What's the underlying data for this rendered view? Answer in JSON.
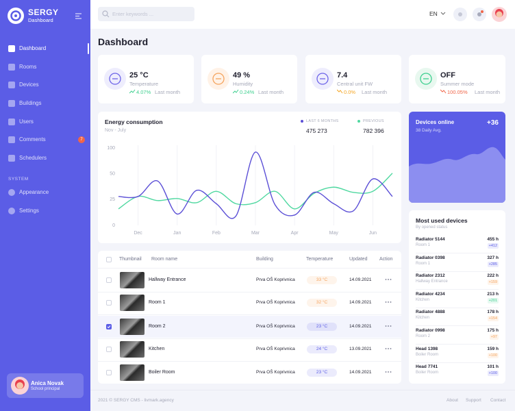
{
  "brand": {
    "name": "SERGY",
    "subtitle": "Dashboard"
  },
  "search_placeholder": "Enter keywords ...",
  "language": "EN",
  "nav": [
    {
      "label": "Dashboard"
    },
    {
      "label": "Rooms"
    },
    {
      "label": "Devices"
    },
    {
      "label": "Buildings"
    },
    {
      "label": "Users"
    },
    {
      "label": "Comments",
      "badge": 7
    },
    {
      "label": "Schedulers"
    }
  ],
  "system_label": "SYSTEM",
  "system_nav": [
    {
      "label": "Appearance"
    },
    {
      "label": "Settings"
    }
  ],
  "user": {
    "name": "Anica Novak",
    "role": "School principal"
  },
  "page_title": "Dashboard",
  "stats": [
    {
      "value": "25 °C",
      "label": "Temperature",
      "change": "4.07%",
      "period": "Last month",
      "color": "#3ccf8e",
      "icon_color": "#6c63e8",
      "icon_bg": "#eeedfd"
    },
    {
      "value": "49 %",
      "label": "Humidity",
      "change": "0.24%",
      "period": "Last month",
      "color": "#3ccf8e",
      "icon_color": "#f5a35c",
      "icon_bg": "#fff2e7"
    },
    {
      "value": "7.4",
      "label": "Central unit FW",
      "change": "0.0%",
      "period": "Last month",
      "color": "#f5a623",
      "icon_color": "#6c63e8",
      "icon_bg": "#eeedfd"
    },
    {
      "value": "OFF",
      "label": "Summer mode",
      "change": "100.05%",
      "period": "Last month",
      "color": "#f06548",
      "icon_color": "#3ccf8e",
      "icon_bg": "#e8f8ef"
    }
  ],
  "chart_data": {
    "type": "line",
    "title": "Energy consumption",
    "subtitle": "Nov - July",
    "categories": [
      null,
      "Dec",
      null,
      "Jan",
      null,
      "Feb",
      null,
      "Mar",
      null,
      "Apr",
      null,
      "May",
      null,
      "Jun",
      null
    ],
    "series": [
      {
        "name": "LAST 6 MONTHS",
        "total": "475 273",
        "color": "#5b4fd6",
        "values": [
          28,
          28,
          43,
          11,
          34,
          21,
          9,
          92,
          20,
          10,
          32,
          21,
          14,
          45,
          28
        ]
      },
      {
        "name": "PREVIOUS",
        "total": "782 396",
        "color": "#4fd8a0",
        "values": [
          16,
          28,
          24,
          26,
          22,
          33,
          21,
          22,
          33,
          16,
          31,
          37,
          32,
          33,
          51
        ]
      }
    ],
    "ylim": [
      0,
      100
    ],
    "yticks": [
      0,
      25,
      50,
      100
    ],
    "grid": true
  },
  "devices_online": {
    "title": "Devices online",
    "change": "+36",
    "subtitle": "38 Daily Avg."
  },
  "most_used": {
    "title": "Most used devices",
    "subtitle": "By opened status",
    "items": [
      {
        "name": "Radiator 5144",
        "location": "Room 1",
        "hours": "455 h",
        "delta": "+412",
        "color": "#5b5de6"
      },
      {
        "name": "Radiator 0398",
        "location": "Room 1",
        "hours": "327 h",
        "delta": "+285",
        "color": "#5b5de6"
      },
      {
        "name": "Radiator 2312",
        "location": "Hallway Entrance",
        "hours": "222 h",
        "delta": "+159",
        "color": "#f5a35c"
      },
      {
        "name": "Radiator 4234",
        "location": "Kitchen",
        "hours": "213 h",
        "delta": "+201",
        "color": "#3ccf8e"
      },
      {
        "name": "Radiator 4888",
        "location": "Kitchen",
        "hours": "178 h",
        "delta": "+154",
        "color": "#f5a35c"
      },
      {
        "name": "Radiator 0998",
        "location": "Room 2",
        "hours": "175 h",
        "delta": "+97",
        "color": "#f5a35c"
      },
      {
        "name": "Head 1398",
        "location": "Boiler Room",
        "hours": "159 h",
        "delta": "+100",
        "color": "#f5a35c"
      },
      {
        "name": "Head 7741",
        "location": "Boiler Room",
        "hours": "101 h",
        "delta": "+100",
        "color": "#5b5de6"
      }
    ]
  },
  "table": {
    "headers": [
      "Thumbnail",
      "Room name",
      "Building",
      "Temperature",
      "Updated",
      "Action"
    ],
    "rows": [
      {
        "room": "Hallway Entrance",
        "building": "Prva OŠ Koprivnica",
        "temperature": "33 °C",
        "updated": "14.09.2021",
        "color": "#f5a35c",
        "selected": false
      },
      {
        "room": "Room 1",
        "building": "Prva OŠ Koprivnica",
        "temperature": "32 °C",
        "updated": "14.09.2021",
        "color": "#f5a35c",
        "selected": false
      },
      {
        "room": "Room 2",
        "building": "Prva OŠ Koprivnica",
        "temperature": "23 °C",
        "updated": "14.09.2021",
        "color": "#5b5de6",
        "selected": true
      },
      {
        "room": "Kitchen",
        "building": "Prva OŠ Koprivnica",
        "temperature": "24 °C",
        "updated": "13.09.2021",
        "color": "#5b5de6",
        "selected": false
      },
      {
        "room": "Boiler Room",
        "building": "Prva OŠ Koprivnica",
        "temperature": "23 °C",
        "updated": "14.09.2021",
        "color": "#5b5de6",
        "selected": false
      }
    ]
  },
  "footer": {
    "copyright": "2021 © SERGY CMS - livmark.agency",
    "links": [
      "About",
      "Support",
      "Contact"
    ]
  }
}
